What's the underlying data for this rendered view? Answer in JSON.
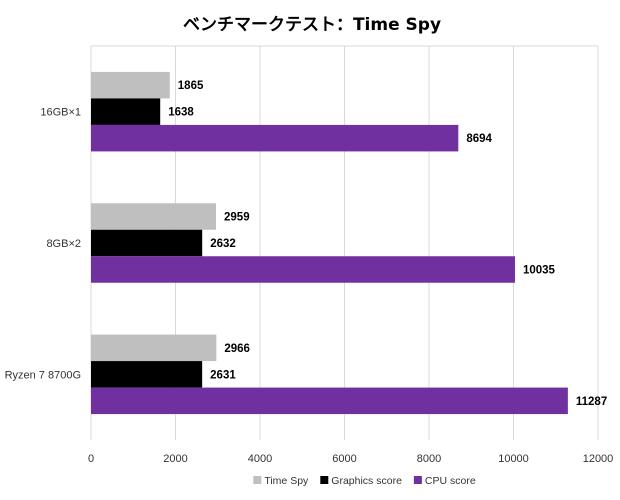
{
  "chart_data": {
    "type": "bar",
    "orientation": "horizontal",
    "title": "ベンチマークテスト：Time Spy",
    "categories": [
      "16GB×1",
      "8GB×2",
      "Ryzen 7 8700G"
    ],
    "series": [
      {
        "name": "Time Spy",
        "color": "#bfbfbf",
        "values": [
          1865,
          2959,
          2966
        ]
      },
      {
        "name": "Graphics score",
        "color": "#000000",
        "values": [
          1638,
          2632,
          2631
        ]
      },
      {
        "name": "CPU score",
        "color": "#7030a0",
        "values": [
          8694,
          10035,
          11287
        ]
      }
    ],
    "xlim": [
      0,
      12000
    ],
    "xticks": [
      0,
      2000,
      4000,
      6000,
      8000,
      10000,
      12000
    ],
    "grid": true,
    "legend": "bottom"
  }
}
